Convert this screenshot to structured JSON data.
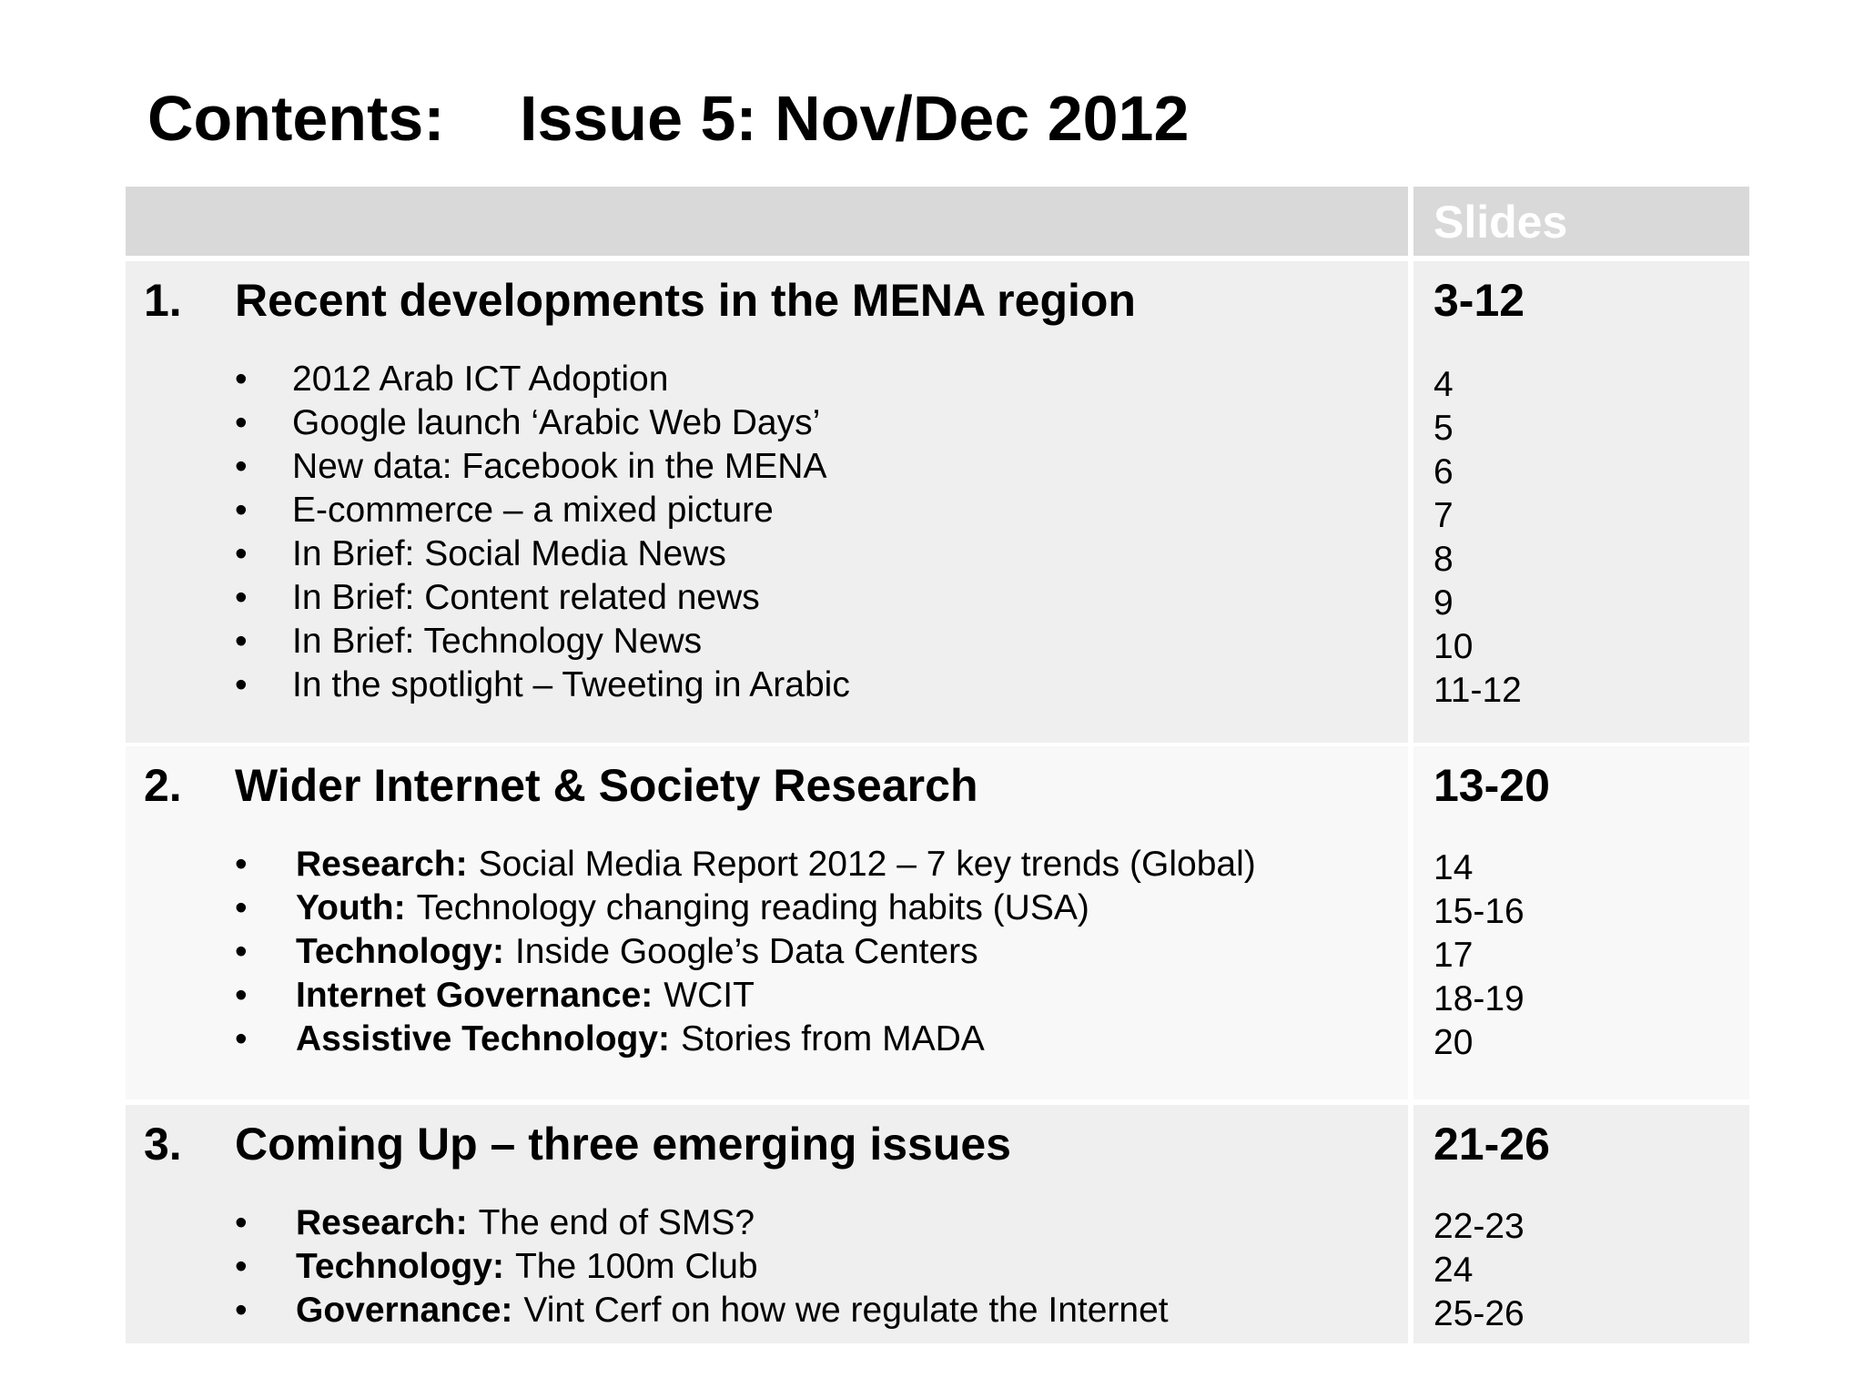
{
  "header": {
    "title": "Contents:",
    "issue": "Issue 5: Nov/Dec 2012"
  },
  "table": {
    "slides_header": "Slides",
    "sections": [
      {
        "number": "1.",
        "title": "Recent developments in the MENA region",
        "slides": "3-12",
        "items": [
          {
            "text": "2012 Arab ICT Adoption",
            "slides": "4"
          },
          {
            "text": "Google launch ‘Arabic Web Days’",
            "slides": "5"
          },
          {
            "text": "New data: Facebook in the MENA",
            "slides": "6"
          },
          {
            "text": "E-commerce – a mixed picture",
            "slides": "7"
          },
          {
            "text": "In Brief: Social Media News",
            "slides": "8"
          },
          {
            "text": "In Brief: Content related news",
            "slides": "9"
          },
          {
            "text": "In Brief: Technology News",
            "slides": "10"
          },
          {
            "text": "In the spotlight – Tweeting in Arabic",
            "slides": "11-12"
          }
        ]
      },
      {
        "number": "2.",
        "title": "Wider Internet & Society Research",
        "slides": "13-20",
        "items": [
          {
            "label": "Research:",
            "text": "Social Media Report 2012 – 7 key trends (Global)",
            "slides": "14"
          },
          {
            "label": "Youth:",
            "text": "Technology changing reading habits (USA)",
            "slides": "15-16"
          },
          {
            "label": "Technology:",
            "text": "Inside Google’s Data Centers",
            "slides": "17"
          },
          {
            "label": "Internet Governance:",
            "text": "WCIT",
            "slides": "18-19"
          },
          {
            "label": "Assistive Technology:",
            "text": "Stories from MADA",
            "slides": "20"
          }
        ]
      },
      {
        "number": "3.",
        "title": "Coming Up – three emerging issues",
        "slides": "21-26",
        "items": [
          {
            "label": "Research:",
            "text": "The end of SMS?",
            "slides": "22-23"
          },
          {
            "label": "Technology:",
            "text": "The 100m Club",
            "slides": "24"
          },
          {
            "label": "Governance:",
            "text": "Vint Cerf on how we regulate the Internet",
            "slides": "25-26"
          }
        ]
      }
    ]
  }
}
